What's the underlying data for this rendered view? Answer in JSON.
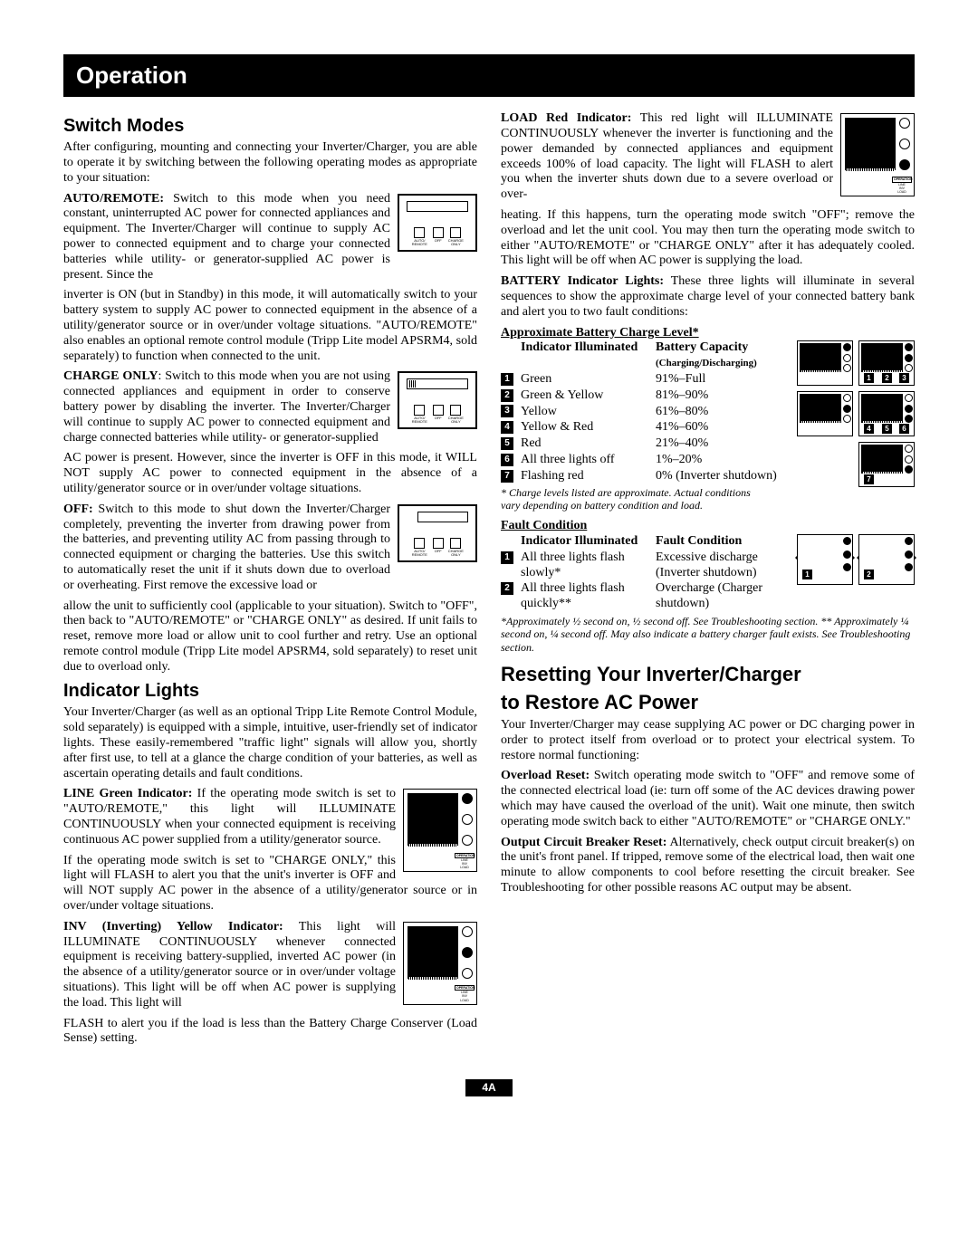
{
  "banner": "Operation",
  "left": {
    "switchModesTitle": "Switch Modes",
    "intro": "After configuring, mounting and connecting your Inverter/Charger, you are able to operate it by switching between the following operating modes as appropriate to your situation:",
    "autoRemoteLabel": "AUTO/REMOTE:",
    "autoRemote1": " Switch to this mode when you need constant, uninterrupted AC power for connected appliances and equipment. The Inverter/Charger will continue to supply AC power to connected equipment and to charge your connected batteries while utility- or generator-supplied AC power is present. Since the",
    "autoRemote2": "inverter is ON (but in Standby) in this mode, it will automatically switch to your battery system to supply AC power to connected equipment in the absence of a utility/generator source or in over/under voltage situations. \"AUTO/REMOTE\" also enables an optional remote control module (Tripp Lite model APSRM4, sold separately) to function when connected to the unit.",
    "chargeOnlyLabel": "CHARGE ONLY",
    "chargeOnly1": ": Switch to this mode when you are not using connected appliances and equipment in order to conserve battery power by disabling the inverter. The Inverter/Charger will continue to supply AC power to connected equipment and charge connected batteries while utility- or generator-supplied",
    "chargeOnly2": "AC power is present. However, since the inverter is OFF in this mode, it WILL NOT supply AC power to connected equipment in the absence of a utility/generator source or in over/under voltage situations.",
    "offLabel": "OFF:",
    "off1": " Switch to this mode to shut down the Inverter/Charger completely, preventing the inverter from drawing power from the batteries, and preventing utility AC from passing through to connected equipment or charging the batteries. Use this switch to automatically reset the unit if it shuts down due to overload or overheating. First remove the excessive load or",
    "off2": "allow the unit to sufficiently cool (applicable to your situation). Switch to \"OFF\", then back to \"AUTO/REMOTE\" or \"CHARGE ONLY\" as desired. If unit fails to reset, remove more load or allow unit to cool further and retry. Use an optional remote control module (Tripp Lite model APSRM4, sold separately) to reset unit due to overload only.",
    "indicatorTitle": "Indicator Lights",
    "indicatorIntro": "Your Inverter/Charger (as well as an optional Tripp Lite Remote Control Module, sold separately) is equipped with a simple, intuitive, user-friendly set of indicator lights. These easily-remembered \"traffic light\" signals will allow you, shortly after first use, to tell at a glance the charge condition of your batteries, as well as ascertain operating details and fault conditions.",
    "lineGreenLabel": "LINE Green Indicator:",
    "lineGreen1": " If the operating mode switch is set to \"AUTO/REMOTE,\" this light will ILLUMINATE CONTINUOUSLY when your connected equipment is receiving continuous AC power supplied from a utility/generator source.",
    "lineGreen2": "If the operating mode switch is set to \"CHARGE ONLY,\" this light will FLASH to alert you that the unit's inverter is OFF and will NOT supply AC power in the absence of a utility/generator source or in over/under voltage situations.",
    "invYellowLabel": "INV (Inverting) Yellow Indicator:",
    "invYellow1": " This light will ILLUMINATE CONTINUOUSLY whenever connected equipment is receiving battery-supplied, inverted AC power (in the absence of a utility/generator source or in over/under voltage situations). This light will be off when AC power is supplying the load. This light will",
    "invYellow2": "FLASH to alert you if the load is less than the Battery Charge Conserver (Load Sense) setting."
  },
  "right": {
    "loadRedLabel": "LOAD Red Indicator:",
    "loadRed1": " This red light will ILLUMINATE CONTINUOUSLY whenever the inverter is functioning and the power demanded by connected appliances and equipment exceeds 100% of load capacity. The light will FLASH to alert you when the inverter shuts down due to a severe overload or over-",
    "loadRed2": "heating. If this happens, turn the operating mode switch \"OFF\"; remove the overload and let the unit cool. You may then turn the operating mode switch to either \"AUTO/REMOTE\" or \"CHARGE ONLY\" after it has adequately cooled. This light will be off when AC power is supplying the load.",
    "batteryLabel": "BATTERY Indicator Lights:",
    "battery1": " These three lights will illuminate in several sequences to show the approximate charge level of your connected battery bank and alert you to two fault conditions:",
    "approxTitle": "Approximate Battery Charge Level*",
    "hdrIndicator": "Indicator Illuminated",
    "hdrCapacity": "Battery Capacity",
    "hdrCapacitySub": "(Charging/Discharging)",
    "levels": [
      {
        "n": "1",
        "ind": "Green",
        "cap": "91%–Full"
      },
      {
        "n": "2",
        "ind": "Green & Yellow",
        "cap": "81%–90%"
      },
      {
        "n": "3",
        "ind": "Yellow",
        "cap": "61%–80%"
      },
      {
        "n": "4",
        "ind": "Yellow & Red",
        "cap": "41%–60%"
      },
      {
        "n": "5",
        "ind": "Red",
        "cap": "21%–40%"
      },
      {
        "n": "6",
        "ind": "All three lights off",
        "cap": "1%–20%"
      },
      {
        "n": "7",
        "ind": "Flashing red",
        "cap": "0% (Inverter shutdown)"
      }
    ],
    "levelNote": "* Charge levels listed are approximate. Actual conditions vary depending on battery condition and load.",
    "faultTitle": "Fault Condition",
    "faultHdr1": "Indicator Illuminated",
    "faultHdr2": "Fault Condition",
    "faults": [
      {
        "n": "1",
        "ind": "All three lights flash slowly*",
        "cond": "Excessive discharge (Inverter shutdown)"
      },
      {
        "n": "2",
        "ind": "All three lights flash quickly**",
        "cond": "Overcharge (Charger shutdown)"
      }
    ],
    "faultNote": "*Approximately ½ second on, ½ second off. See Troubleshooting section. ** Approximately ¼ second on, ¼ second off. May also indicate a battery charger fault exists. See Troubleshooting section.",
    "resetTitle1": "Resetting Your Inverter/Charger",
    "resetTitle2": "to Restore AC Power",
    "resetIntro": "Your Inverter/Charger may cease supplying AC power or DC charging power in order to protect itself from overload or to protect your electrical system. To restore normal functioning:",
    "overloadLabel": "Overload Reset:",
    "overload": " Switch operating mode switch to \"OFF\" and remove some of the connected electrical load (ie: turn off some of the AC devices drawing power which may have caused the overload of the unit). Wait one minute, then switch operating mode switch back to either \"AUTO/REMOTE\" or \"CHARGE ONLY.\"",
    "outputLabel": "Output Circuit Breaker Reset:",
    "output": " Alternatively, check output circuit breaker(s) on the unit's front panel. If tripped, remove some of the electrical load, then wait one minute to allow components to cool before resetting the circuit breaker. See Troubleshooting for other possible reasons AC output may be absent."
  },
  "switchLabels": {
    "a": "AUTO/\nREMOTE",
    "b": "OFF",
    "c": "CHARGE\nONLY"
  },
  "opLabels": {
    "hdr": "OPERATION",
    "l1": "LINE",
    "l2": "INV",
    "l3": "LOAD"
  },
  "pageNum": "4A"
}
